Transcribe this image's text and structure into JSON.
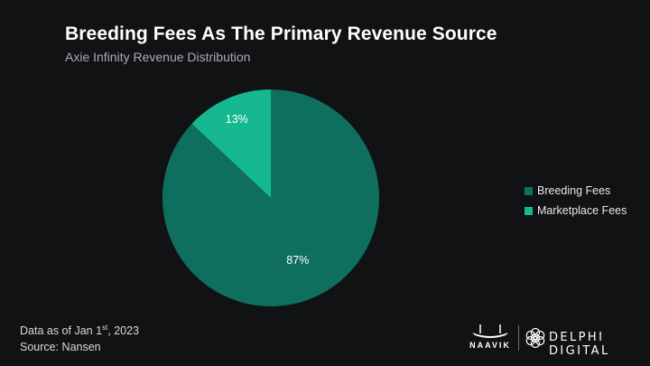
{
  "header": {
    "title": "Breeding Fees As The Primary Revenue Source",
    "subtitle": "Axie Infinity Revenue Distribution"
  },
  "chart_data": {
    "type": "pie",
    "title": "Breeding Fees As The Primary Revenue Source",
    "subtitle": "Axie Infinity Revenue Distribution",
    "slices": [
      {
        "name": "Breeding Fees",
        "value": 87,
        "label": "87%",
        "color": "#0f6f5f"
      },
      {
        "name": "Marketplace Fees",
        "value": 13,
        "label": "13%",
        "color": "#16b890"
      }
    ],
    "legend_position": "right"
  },
  "legend": {
    "items": [
      {
        "label": "Breeding Fees",
        "color": "#0f6f5f"
      },
      {
        "label": "Marketplace Fees",
        "color": "#16b890"
      }
    ]
  },
  "footer": {
    "date_prefix": "Data as of Jan 1",
    "date_sup": "st",
    "date_suffix": ", 2023",
    "source": "Source: Nansen"
  },
  "logos": {
    "naavik": "NAAVIK",
    "delphi": "DELPHI DIGITAL",
    "naavik_icon": "boat-icon",
    "delphi_icon": "delphi-flower-icon"
  },
  "colors": {
    "background": "#111214",
    "title": "#ffffff",
    "subtitle": "#a9adb3"
  }
}
